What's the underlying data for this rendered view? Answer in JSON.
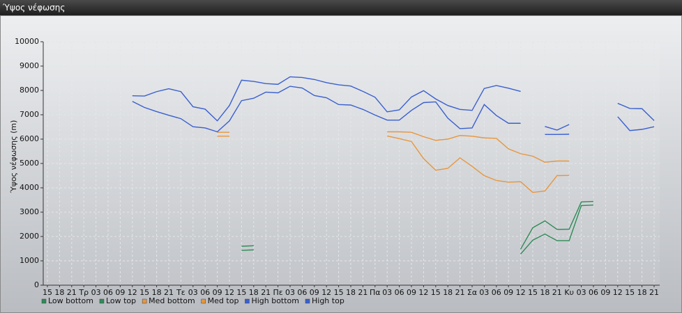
{
  "window_title": "Ύψος νέφωσης",
  "chart_data": {
    "type": "line",
    "y_label": "Ύψος νέφωσης (m)",
    "categories": [
      "15",
      "18",
      "21",
      "Τρ",
      "03",
      "06",
      "09",
      "12",
      "15",
      "18",
      "21",
      "Τε",
      "03",
      "06",
      "09",
      "12",
      "15",
      "18",
      "21",
      "Πε",
      "03",
      "06",
      "09",
      "12",
      "15",
      "18",
      "21",
      "Πα",
      "03",
      "06",
      "09",
      "12",
      "15",
      "18",
      "21",
      "Σα",
      "03",
      "06",
      "09",
      "12",
      "15",
      "18",
      "21",
      "Κυ",
      "03",
      "06",
      "09",
      "12",
      "15",
      "18",
      "21"
    ],
    "ylim": [
      0,
      10000
    ],
    "yticks": [
      0,
      1000,
      2000,
      3000,
      4000,
      5000,
      6000,
      7000,
      8000,
      9000,
      10000
    ],
    "grid": true,
    "legend": "bottom",
    "series": [
      {
        "name": "Low bottom",
        "color": "#2e8b57",
        "values": [
          null,
          null,
          null,
          null,
          null,
          null,
          null,
          null,
          null,
          null,
          null,
          null,
          null,
          null,
          null,
          null,
          1430,
          1450,
          null,
          null,
          null,
          null,
          null,
          null,
          null,
          null,
          null,
          null,
          null,
          null,
          null,
          null,
          null,
          null,
          null,
          null,
          null,
          null,
          null,
          1280,
          1850,
          2100,
          1830,
          1830,
          3270,
          3290,
          null,
          null,
          null,
          null,
          null
        ]
      },
      {
        "name": "Low top",
        "color": "#2e8b57",
        "values": [
          null,
          null,
          null,
          null,
          null,
          null,
          null,
          null,
          null,
          null,
          null,
          null,
          null,
          null,
          null,
          null,
          1600,
          1620,
          null,
          null,
          null,
          null,
          null,
          null,
          null,
          null,
          null,
          null,
          null,
          null,
          null,
          null,
          null,
          null,
          null,
          null,
          null,
          null,
          null,
          1480,
          2360,
          2640,
          2290,
          2300,
          3420,
          3440,
          null,
          null,
          null,
          null,
          null
        ]
      },
      {
        "name": "Med bottom",
        "color": "#e8963c",
        "values": [
          null,
          null,
          null,
          null,
          null,
          null,
          null,
          null,
          null,
          null,
          null,
          null,
          null,
          null,
          6120,
          6120,
          null,
          null,
          null,
          null,
          null,
          null,
          null,
          null,
          null,
          null,
          null,
          null,
          6130,
          6020,
          5900,
          5200,
          4720,
          4800,
          5230,
          4880,
          4500,
          4300,
          4230,
          4250,
          3810,
          3870,
          4500,
          4510,
          null,
          null,
          null,
          null,
          null,
          null,
          null
        ]
      },
      {
        "name": "Med top",
        "color": "#e8963c",
        "values": [
          null,
          null,
          null,
          null,
          null,
          null,
          null,
          null,
          null,
          null,
          null,
          null,
          null,
          null,
          6280,
          6280,
          null,
          null,
          null,
          null,
          null,
          null,
          null,
          null,
          null,
          null,
          null,
          null,
          6300,
          6300,
          6280,
          6100,
          5950,
          6000,
          6150,
          6120,
          6050,
          6030,
          5600,
          5400,
          5300,
          5050,
          5100,
          5100,
          null,
          null,
          null,
          null,
          null,
          null,
          null
        ]
      },
      {
        "name": "High bottom",
        "color": "#3a5fd0",
        "values": [
          null,
          null,
          null,
          null,
          null,
          null,
          null,
          7550,
          7300,
          7130,
          6980,
          6840,
          6510,
          6460,
          6300,
          6750,
          7580,
          7680,
          7930,
          7900,
          8170,
          8100,
          7790,
          7700,
          7420,
          7400,
          7220,
          6990,
          6780,
          6780,
          7180,
          7500,
          7530,
          6860,
          6430,
          6460,
          7420,
          6970,
          6650,
          6650,
          null,
          6190,
          6190,
          6200,
          null,
          null,
          null,
          6920,
          6350,
          6400,
          6510
        ]
      },
      {
        "name": "High top",
        "color": "#3a5fd0",
        "values": [
          null,
          null,
          null,
          null,
          null,
          null,
          null,
          7780,
          7770,
          7950,
          8070,
          7950,
          7330,
          7230,
          6750,
          7380,
          8420,
          8370,
          8280,
          8250,
          8560,
          8530,
          8450,
          8320,
          8230,
          8180,
          7960,
          7720,
          7120,
          7200,
          7730,
          7990,
          7650,
          7380,
          7220,
          7180,
          8080,
          8200,
          8090,
          7960,
          null,
          6520,
          6370,
          6600,
          null,
          null,
          null,
          7470,
          7260,
          7250,
          6760
        ]
      }
    ]
  }
}
